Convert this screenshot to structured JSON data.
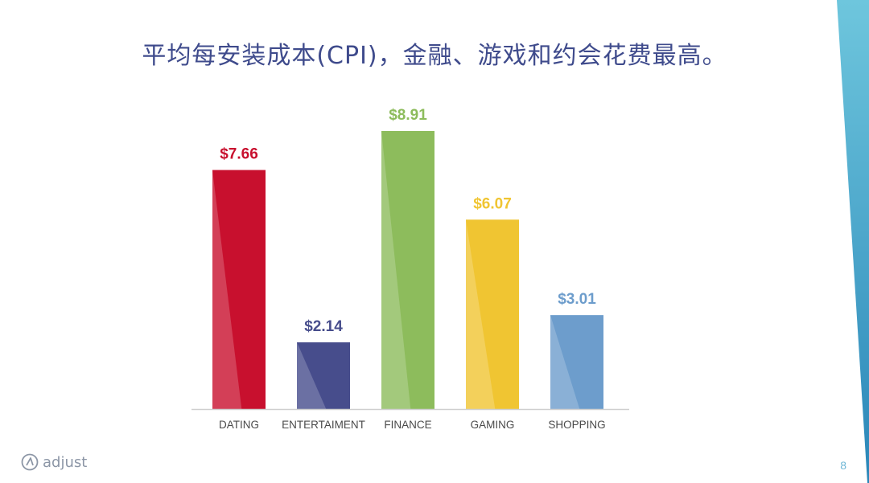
{
  "slide": {
    "title": "平均每安装成本(CPI)，金融、游戏和约会花费最高。",
    "logo_text": "adjust",
    "page_number": "8",
    "accent_color": "#3f4b8c",
    "stripe_colors": [
      "#6ec6dd",
      "#2a86b8"
    ]
  },
  "chart_data": {
    "type": "bar",
    "categories": [
      "DATING",
      "ENTERTAIMENT",
      "FINANCE",
      "GAMING",
      "SHOPPING"
    ],
    "values": [
      7.66,
      2.14,
      8.91,
      6.07,
      3.01
    ],
    "value_labels": [
      "$7.66",
      "$2.14",
      "$8.91",
      "$6.07",
      "$3.01"
    ],
    "colors": [
      "#c8102e",
      "#474d8c",
      "#8dbc5c",
      "#f0c532",
      "#6d9dcc"
    ],
    "title": "",
    "xlabel": "",
    "ylabel": "",
    "ylim": [
      0,
      8.91
    ],
    "grid": false
  }
}
